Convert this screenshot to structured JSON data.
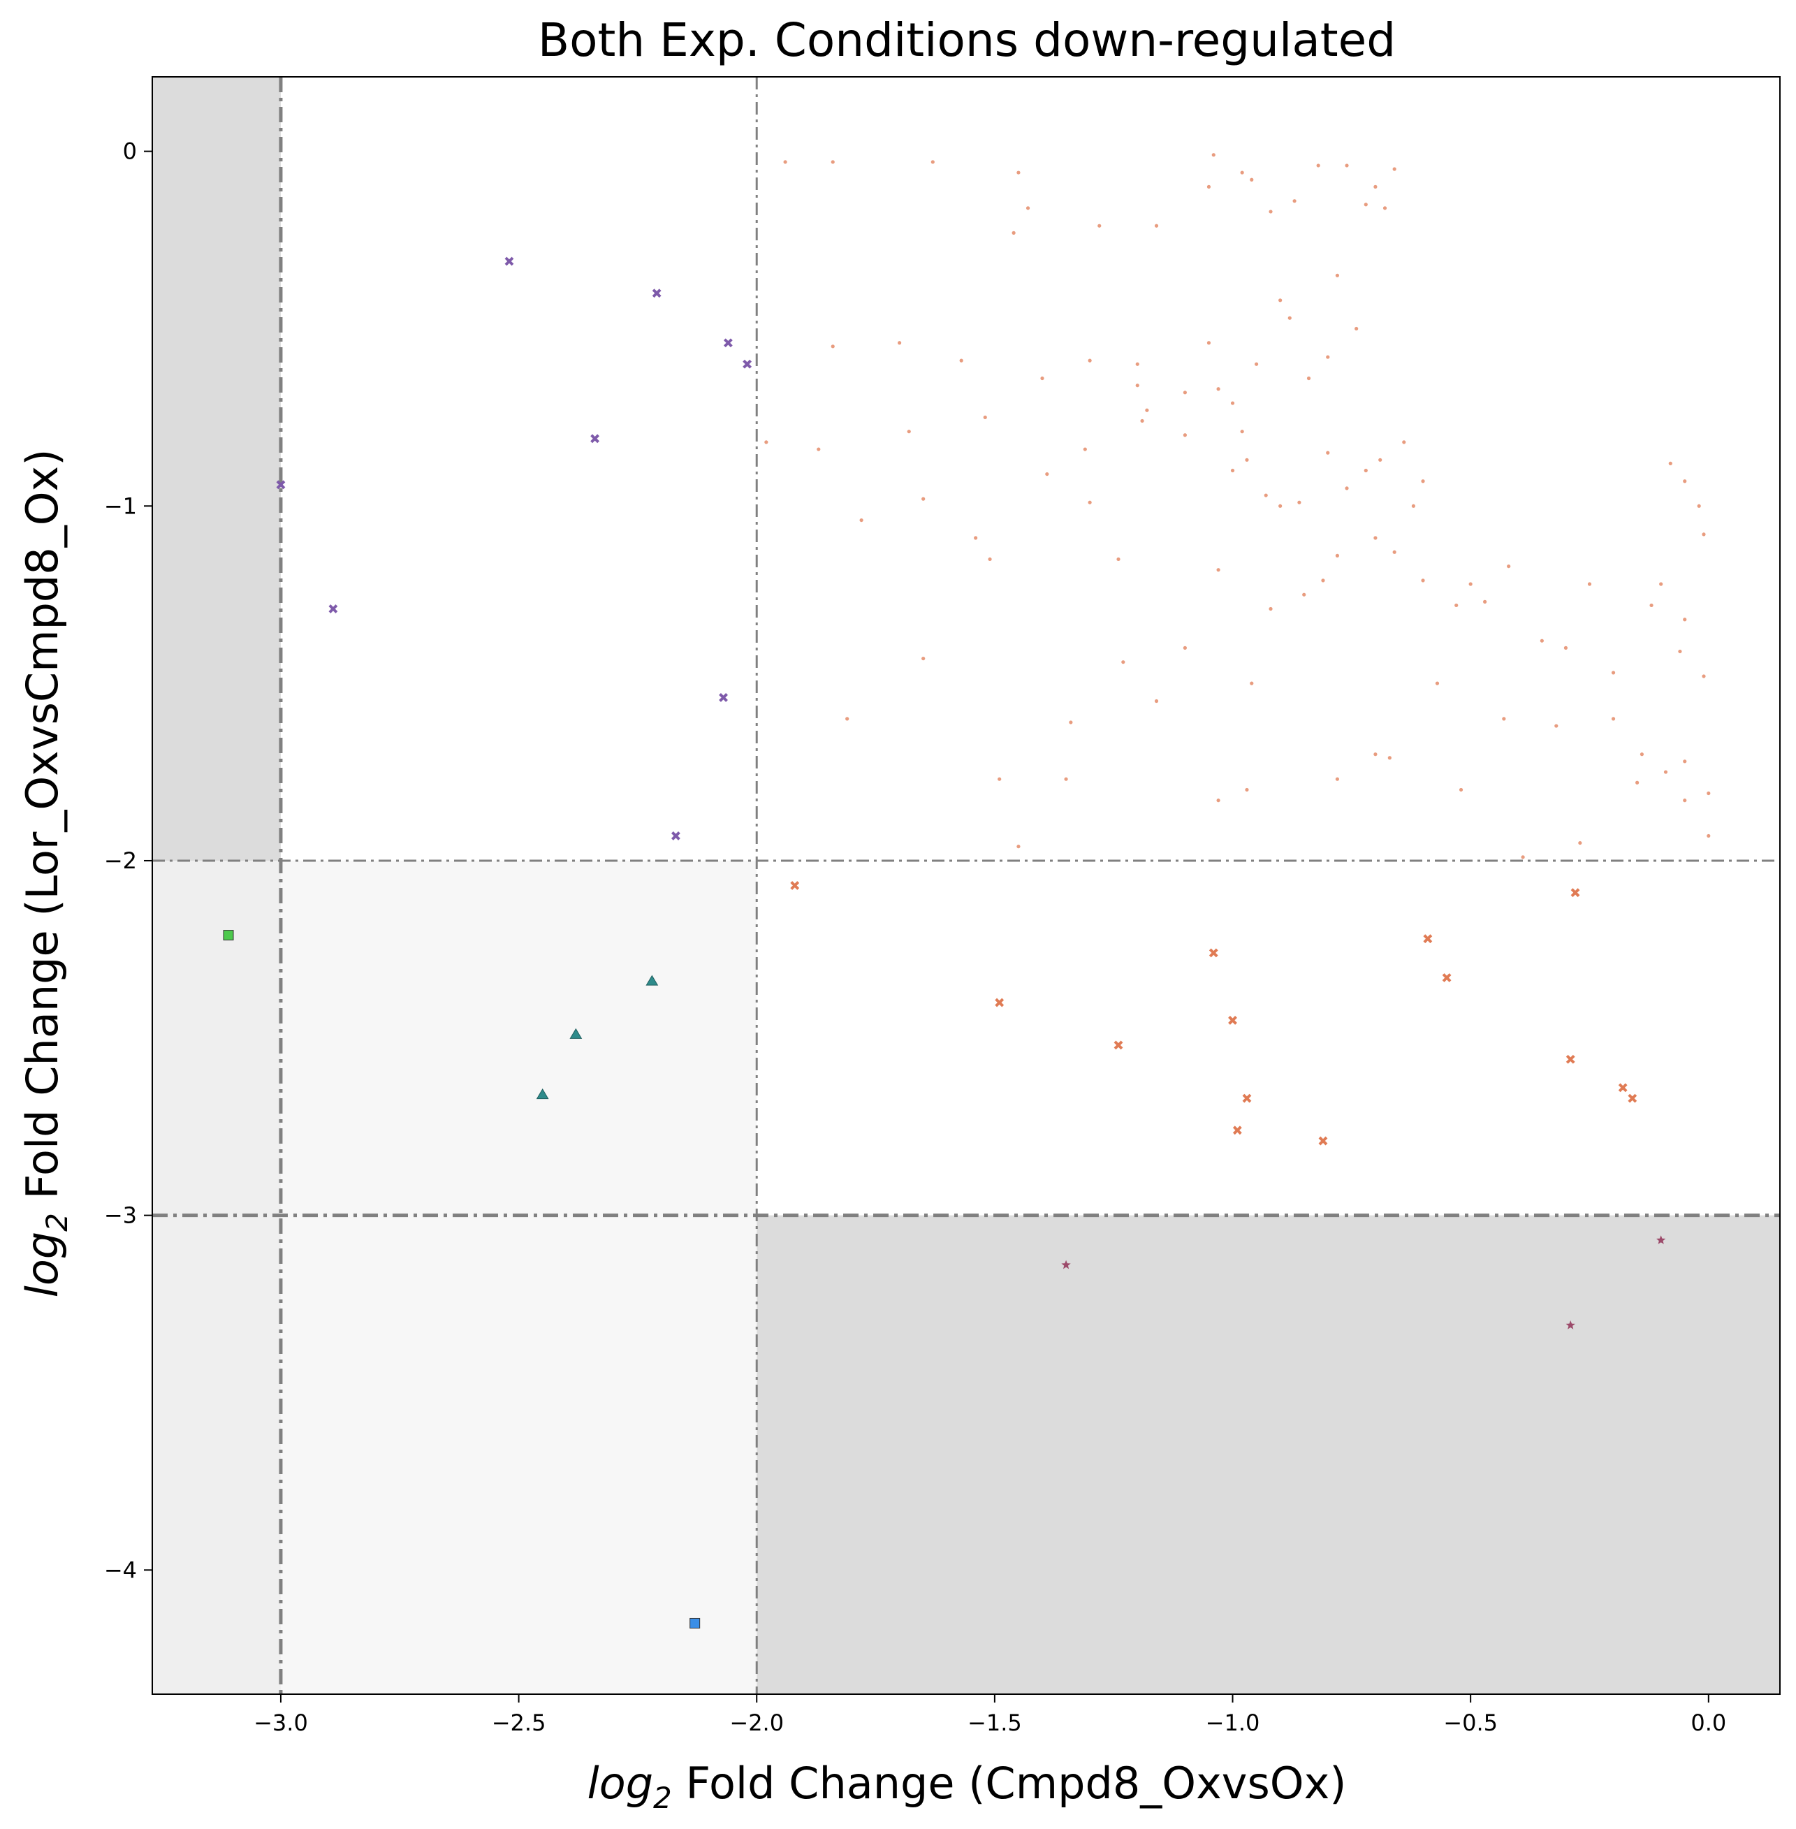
{
  "chart_data": {
    "type": "scatter",
    "title": "Both Exp. Conditions down-regulated",
    "xlabel_prefix": "log",
    "xlabel_sub": "2",
    "xlabel_rest": " Fold Change (Cmpd8_OxvsOx)",
    "ylabel_prefix": "log",
    "ylabel_sub": "2",
    "ylabel_rest": " Fold Change (Lor_OxvsCmpd8_Ox)",
    "xlim": [
      -3.27,
      0.15
    ],
    "ylim": [
      -4.35,
      0.21
    ],
    "xticks": [
      -3.0,
      -2.5,
      -2.0,
      -1.5,
      -1.0,
      -0.5,
      0.0
    ],
    "xtick_labels": [
      "−3.0",
      "−2.5",
      "−2.0",
      "−1.5",
      "−1.0",
      "−0.5",
      "0.0"
    ],
    "yticks": [
      0,
      -1,
      -2,
      -3,
      -4
    ],
    "ytick_labels": [
      "0",
      "−1",
      "−2",
      "−3",
      "−4"
    ],
    "grid": false,
    "legend": "none",
    "threshold_lines": {
      "x_thin": -2.0,
      "x_thick": -3.0,
      "y_thin": -2.0,
      "y_thick": -3.0,
      "color": "#808080"
    },
    "shaded_regions": [
      {
        "x": [
          -3.27,
          -3.0
        ],
        "y": [
          -2.0,
          0.21
        ],
        "color": "#dcdcdc"
      },
      {
        "x": [
          -2.0,
          0.15
        ],
        "y": [
          -4.35,
          -3.0
        ],
        "color": "#dcdcdc"
      },
      {
        "x": [
          -3.27,
          -3.0
        ],
        "y": [
          -4.35,
          -2.0
        ],
        "color": "#efefef"
      },
      {
        "x": [
          -3.0,
          -2.0
        ],
        "y": [
          -4.35,
          -2.0
        ],
        "color": "#f7f7f7"
      }
    ],
    "series": [
      {
        "marker": "dot",
        "color": "#e07b54",
        "points": [
          [
            -1.94,
            -0.03
          ],
          [
            -1.84,
            -0.03
          ],
          [
            -1.63,
            -0.03
          ],
          [
            -1.45,
            -0.06
          ],
          [
            -1.43,
            -0.16
          ],
          [
            -1.46,
            -0.23
          ],
          [
            -1.28,
            -0.21
          ],
          [
            -1.16,
            -0.21
          ],
          [
            -1.04,
            -0.01
          ],
          [
            -1.05,
            -0.1
          ],
          [
            -0.98,
            -0.06
          ],
          [
            -0.96,
            -0.08
          ],
          [
            -0.92,
            -0.17
          ],
          [
            -0.87,
            -0.14
          ],
          [
            -0.82,
            -0.04
          ],
          [
            -0.76,
            -0.04
          ],
          [
            -0.72,
            -0.15
          ],
          [
            -0.7,
            -0.1
          ],
          [
            -0.68,
            -0.16
          ],
          [
            -0.66,
            -0.05
          ],
          [
            -1.84,
            -0.55
          ],
          [
            -1.7,
            -0.54
          ],
          [
            -1.57,
            -0.59
          ],
          [
            -1.4,
            -0.64
          ],
          [
            -1.3,
            -0.59
          ],
          [
            -1.2,
            -0.6
          ],
          [
            -1.2,
            -0.66
          ],
          [
            -1.18,
            -0.73
          ],
          [
            -1.1,
            -0.68
          ],
          [
            -1.05,
            -0.54
          ],
          [
            -1.03,
            -0.67
          ],
          [
            -1.0,
            -0.71
          ],
          [
            -0.98,
            -0.79
          ],
          [
            -0.95,
            -0.6
          ],
          [
            -0.9,
            -0.42
          ],
          [
            -0.88,
            -0.47
          ],
          [
            -0.84,
            -0.64
          ],
          [
            -0.8,
            -0.58
          ],
          [
            -0.78,
            -0.35
          ],
          [
            -0.74,
            -0.5
          ],
          [
            -1.98,
            -0.82
          ],
          [
            -1.87,
            -0.84
          ],
          [
            -1.68,
            -0.79
          ],
          [
            -1.52,
            -0.75
          ],
          [
            -1.39,
            -0.91
          ],
          [
            -1.31,
            -0.84
          ],
          [
            -1.19,
            -0.76
          ],
          [
            -1.1,
            -0.8
          ],
          [
            -1.0,
            -0.9
          ],
          [
            -0.97,
            -0.87
          ],
          [
            -0.93,
            -0.97
          ],
          [
            -0.9,
            -1.0
          ],
          [
            -0.86,
            -0.99
          ],
          [
            -0.8,
            -0.85
          ],
          [
            -0.76,
            -0.95
          ],
          [
            -0.72,
            -0.9
          ],
          [
            -0.69,
            -0.87
          ],
          [
            -0.64,
            -0.82
          ],
          [
            -0.62,
            -1.0
          ],
          [
            -0.6,
            -0.93
          ],
          [
            -1.78,
            -1.04
          ],
          [
            -1.65,
            -0.98
          ],
          [
            -1.54,
            -1.09
          ],
          [
            -1.51,
            -1.15
          ],
          [
            -1.3,
            -0.99
          ],
          [
            -1.24,
            -1.15
          ],
          [
            -1.1,
            -1.4
          ],
          [
            -1.03,
            -1.18
          ],
          [
            -0.96,
            -1.5
          ],
          [
            -0.92,
            -1.29
          ],
          [
            -0.85,
            -1.25
          ],
          [
            -0.81,
            -1.21
          ],
          [
            -0.78,
            -1.14
          ],
          [
            -0.7,
            -1.09
          ],
          [
            -0.66,
            -1.13
          ],
          [
            -0.6,
            -1.21
          ],
          [
            -0.57,
            -1.5
          ],
          [
            -0.53,
            -1.28
          ],
          [
            -0.5,
            -1.22
          ],
          [
            -0.47,
            -1.27
          ],
          [
            -1.81,
            -1.6
          ],
          [
            -1.65,
            -1.43
          ],
          [
            -1.49,
            -1.77
          ],
          [
            -1.45,
            -1.96
          ],
          [
            -1.35,
            -1.77
          ],
          [
            -1.34,
            -1.61
          ],
          [
            -1.23,
            -1.44
          ],
          [
            -1.16,
            -1.55
          ],
          [
            -1.03,
            -1.83
          ],
          [
            -0.97,
            -1.8
          ],
          [
            -0.78,
            -1.77
          ],
          [
            -0.7,
            -1.7
          ],
          [
            -0.67,
            -1.71
          ],
          [
            -0.52,
            -1.8
          ],
          [
            -0.43,
            -1.6
          ],
          [
            -0.39,
            -1.99
          ],
          [
            -0.32,
            -1.62
          ],
          [
            -0.27,
            -1.95
          ],
          [
            -0.2,
            -1.6
          ],
          [
            -0.15,
            -1.78
          ],
          [
            -0.14,
            -1.7
          ],
          [
            -0.09,
            -1.75
          ],
          [
            -0.05,
            -1.72
          ],
          [
            -0.05,
            -1.83
          ],
          [
            0.0,
            -1.81
          ],
          [
            0.0,
            -1.93
          ],
          [
            -0.01,
            -1.48
          ],
          [
            -0.05,
            -1.32
          ],
          [
            -0.06,
            -1.41
          ],
          [
            -0.12,
            -1.28
          ],
          [
            -0.2,
            -1.47
          ],
          [
            -0.3,
            -1.4
          ],
          [
            -0.35,
            -1.38
          ],
          [
            -0.42,
            -1.17
          ],
          [
            -0.25,
            -1.22
          ],
          [
            -0.1,
            -1.22
          ],
          [
            -0.01,
            -1.08
          ],
          [
            -0.02,
            -1.0
          ],
          [
            -0.05,
            -0.93
          ],
          [
            -0.08,
            -0.88
          ]
        ]
      },
      {
        "marker": "x",
        "color": "#7e5aaa",
        "points": [
          [
            -2.52,
            -0.31
          ],
          [
            -2.21,
            -0.4
          ],
          [
            -2.06,
            -0.54
          ],
          [
            -2.02,
            -0.6
          ],
          [
            -2.34,
            -0.81
          ],
          [
            -3.0,
            -0.94
          ],
          [
            -2.89,
            -1.29
          ],
          [
            -2.07,
            -1.54
          ],
          [
            -2.17,
            -1.93
          ]
        ]
      },
      {
        "marker": "x",
        "color": "#e07b54",
        "points": [
          [
            -1.92,
            -2.07
          ],
          [
            -1.49,
            -2.4
          ],
          [
            -1.24,
            -2.52
          ],
          [
            -1.04,
            -2.26
          ],
          [
            -1.0,
            -2.45
          ],
          [
            -0.97,
            -2.67
          ],
          [
            -0.99,
            -2.76
          ],
          [
            -0.81,
            -2.79
          ],
          [
            -0.59,
            -2.22
          ],
          [
            -0.55,
            -2.33
          ],
          [
            -0.28,
            -2.09
          ],
          [
            -0.29,
            -2.56
          ],
          [
            -0.18,
            -2.64
          ],
          [
            -0.16,
            -2.67
          ]
        ]
      },
      {
        "marker": "triangle",
        "color": "#2e8b8b",
        "points": [
          [
            -2.22,
            -2.34
          ],
          [
            -2.38,
            -2.49
          ],
          [
            -2.45,
            -2.66
          ]
        ]
      },
      {
        "marker": "square",
        "color": "#4cc94c",
        "points": [
          [
            -3.11,
            -2.21
          ]
        ]
      },
      {
        "marker": "square",
        "color": "#3a8ee6",
        "points": [
          [
            -2.13,
            -4.15
          ]
        ]
      },
      {
        "marker": "star",
        "color": "#9c4a6a",
        "points": [
          [
            -1.35,
            -3.14
          ],
          [
            -0.29,
            -3.31
          ],
          [
            -0.1,
            -3.07
          ]
        ]
      }
    ]
  }
}
